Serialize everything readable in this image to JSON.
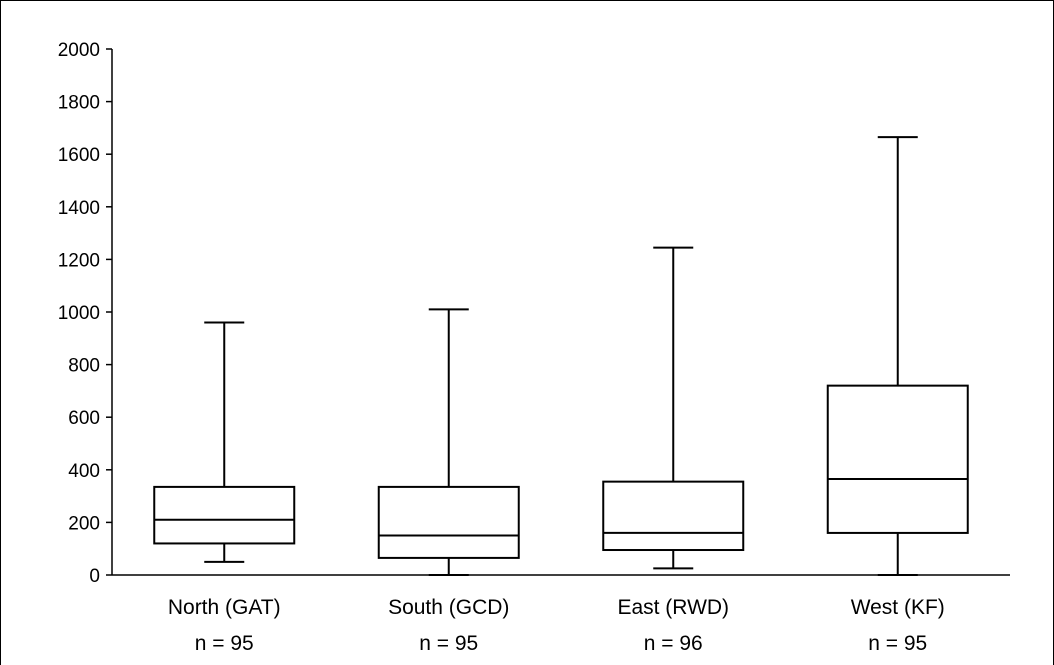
{
  "chart_data": {
    "type": "box",
    "title": "",
    "xlabel": "",
    "ylabel": "",
    "ylim": [
      0,
      2000
    ],
    "yticks": [
      0,
      200,
      400,
      600,
      800,
      1000,
      1200,
      1400,
      1600,
      1800,
      2000
    ],
    "grid": false,
    "legend": "none",
    "categories": [
      {
        "name": "North (GAT)",
        "n_label": "n = 95",
        "min": 50,
        "q1": 120,
        "median": 210,
        "q3": 335,
        "max": 960
      },
      {
        "name": "South (GCD)",
        "n_label": "n = 95",
        "min": 0,
        "q1": 65,
        "median": 150,
        "q3": 335,
        "max": 1010
      },
      {
        "name": "East (RWD)",
        "n_label": "n = 96",
        "min": 25,
        "q1": 95,
        "median": 160,
        "q3": 355,
        "max": 1245
      },
      {
        "name": "West (KF)",
        "n_label": "n = 95",
        "min": 0,
        "q1": 160,
        "median": 365,
        "q3": 720,
        "max": 1665
      }
    ],
    "colors": {
      "stroke": "#000000",
      "box_fill": "#ffffff"
    }
  }
}
